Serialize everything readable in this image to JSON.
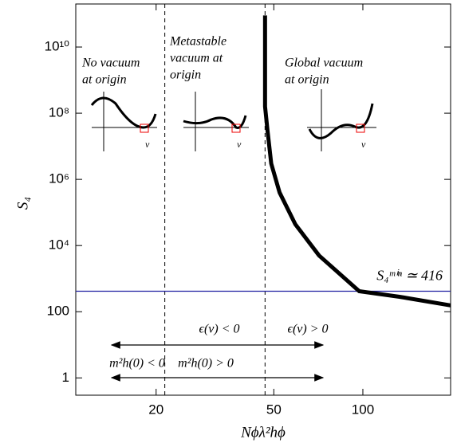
{
  "chart_data": {
    "type": "line",
    "x_label": "Nϕλ²hϕ",
    "y_label": "S₄",
    "log_x": true,
    "log_y": true,
    "xlim": [
      10.7,
      198
    ],
    "ylim": [
      0.3,
      200000000000
    ],
    "xticks": [
      20,
      50,
      100
    ],
    "yticks": [
      1,
      100,
      {
        "value": 10000,
        "label": "10⁴"
      },
      {
        "value": 1000000,
        "label": "10⁶"
      },
      {
        "value": 100000000,
        "label": "10⁸"
      },
      {
        "value": 10000000000,
        "label": "10¹⁰"
      }
    ],
    "series": [
      {
        "color": "#000000",
        "x": [
          46.7,
          46.7,
          46.7,
          46.7,
          47.6,
          49,
          52.3,
          59.1,
          71.1,
          97.2,
          133,
          198
        ],
        "values": [
          90000000000,
          10000000000,
          1000000000,
          160000000,
          30000000,
          3000000,
          400000,
          44000,
          5000,
          416,
          283,
          155
        ]
      }
    ],
    "hline": {
      "value": 416,
      "color": "#1f1fa0",
      "label": "S₄ᵐⁱⁿ ≃ 416"
    },
    "vlines": [
      21.4,
      46.7
    ],
    "regions": [
      [
        "No vacuum",
        "at origin"
      ],
      [
        "Metastable",
        "vacuum at",
        "origin"
      ],
      [
        "Global vacuum",
        "at origin"
      ]
    ],
    "inset_labels": [
      "v",
      "v",
      "v"
    ],
    "arrow_labels": [
      "ϵ(v) < 0",
      "ϵ(v) > 0",
      "m²h(0) < 0",
      "m²h(0) > 0"
    ]
  }
}
